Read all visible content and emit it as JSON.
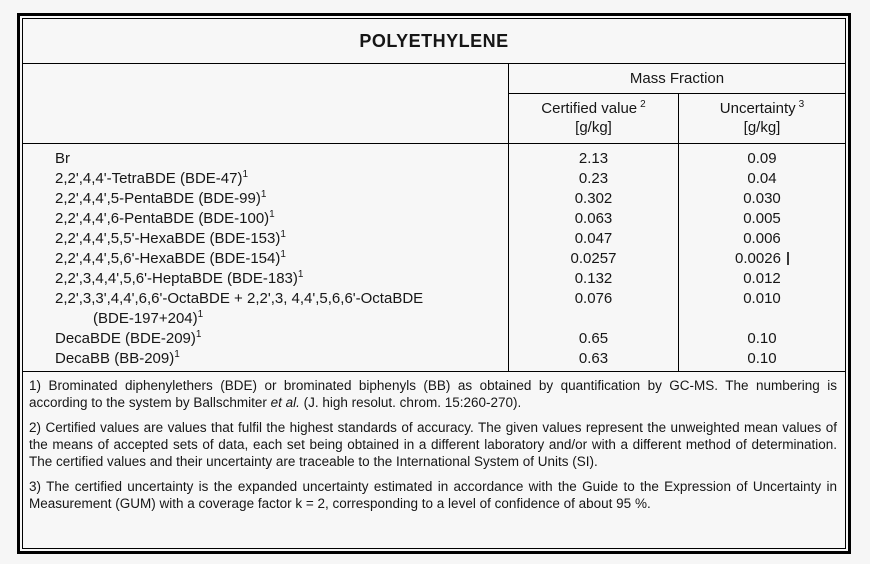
{
  "title": "POLYETHYLENE",
  "header": {
    "mass_fraction": "Mass Fraction",
    "certified": {
      "label": "Certified value",
      "sup": "2",
      "unit": "[g/kg]"
    },
    "uncertainty": {
      "label": "Uncertainty",
      "sup": "3",
      "unit": "[g/kg]"
    }
  },
  "table": {
    "rows": [
      {
        "label": "Br",
        "sup": "",
        "certified": "2.13",
        "uncertainty": "0.09"
      },
      {
        "label": "2,2',4,4'-TetraBDE (BDE-47)",
        "sup": "1",
        "certified": "0.23",
        "uncertainty": "0.04"
      },
      {
        "label": "2,2',4,4',5-PentaBDE (BDE-99)",
        "sup": "1",
        "certified": "0.302",
        "uncertainty": "0.030"
      },
      {
        "label": "2,2',4,4',6-PentaBDE (BDE-100)",
        "sup": "1",
        "certified": "0.063",
        "uncertainty": "0.005"
      },
      {
        "label": "2,2',4,4',5,5'-HexaBDE (BDE-153)",
        "sup": "1",
        "certified": "0.047",
        "uncertainty": "0.006"
      },
      {
        "label": "2,2',4,4',5,6'-HexaBDE (BDE-154)",
        "sup": "1",
        "certified": "0.0257",
        "uncertainty": "0.0026"
      },
      {
        "label": "2,2',3,4,4',5,6'-HeptaBDE (BDE-183)",
        "sup": "1",
        "certified": "0.132",
        "uncertainty": "0.012"
      },
      {
        "label": "2,2',3,3',4,4',6,6'-OctaBDE + 2,2',3, 4,4',5,6,6'-OctaBDE",
        "label2": "(BDE-197+204)",
        "sup": "1",
        "certified": "0.076",
        "uncertainty": "0.010"
      },
      {
        "label": "DecaBDE (BDE-209)",
        "sup": "1",
        "certified": "0.65",
        "uncertainty": "0.10"
      },
      {
        "label": "DecaBB (BB-209)",
        "sup": "1",
        "certified": "0.63",
        "uncertainty": "0.10"
      }
    ]
  },
  "footnotes": {
    "fn1": {
      "pre": "1) Brominated diphenylethers (BDE) or brominated biphenyls (BB) as obtained by quantification by GC-MS. The numbering is according to the system by Ballschmiter ",
      "italic": "et al.",
      "post": " (J. high resolut. chrom. 15:260-270)."
    },
    "fn2": "2) Certified values are values that fulfil the highest standards of accuracy. The given values represent the unweighted mean values of the means of accepted sets of data, each set being obtained in a different laboratory and/or with a different method of determination. The certified values and their uncertainty are traceable to the International System of Units (SI).",
    "fn3": "3) The certified uncertainty is the expanded uncertainty estimated in accordance with the Guide to the Expression of Uncertainty in Measurement (GUM) with a coverage factor k = 2, corresponding to a level of confidence of about 95 %."
  },
  "colors": {
    "border": "#000000",
    "text": "#161616",
    "background": "#f7f7f7"
  }
}
